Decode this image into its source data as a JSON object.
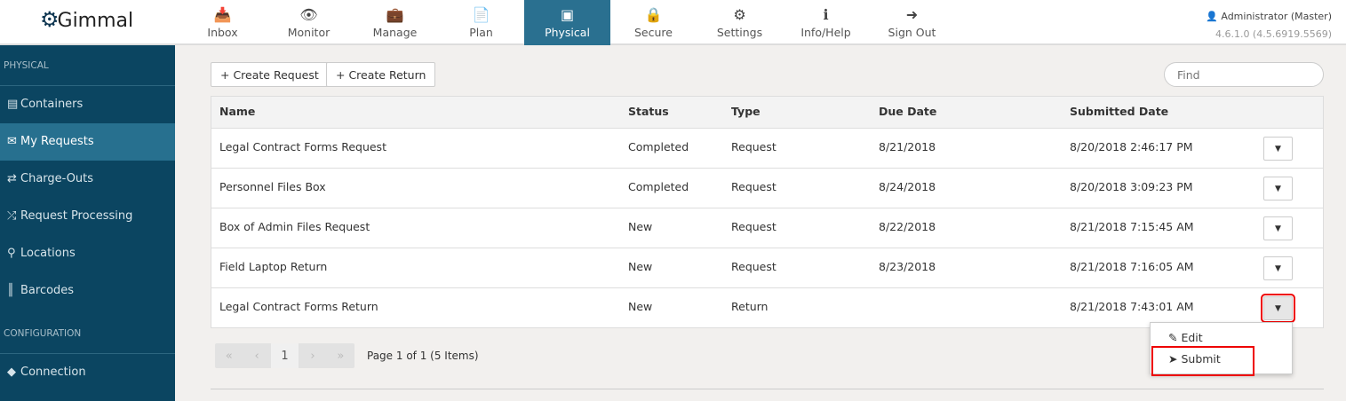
{
  "header": {
    "logo": "Gimmal",
    "user": "Administrator (Master)",
    "version": "4.6.1.0 (4.5.6919.5569)",
    "nav": [
      {
        "label": "Inbox",
        "icon": "inbox-icon",
        "glyph": "📥"
      },
      {
        "label": "Monitor",
        "icon": "eye-icon",
        "glyph": "👁"
      },
      {
        "label": "Manage",
        "icon": "briefcase-icon",
        "glyph": "💼"
      },
      {
        "label": "Plan",
        "icon": "document-icon",
        "glyph": "📄"
      },
      {
        "label": "Physical",
        "icon": "archive-box-icon",
        "glyph": "▣"
      },
      {
        "label": "Secure",
        "icon": "lock-icon",
        "glyph": "🔒"
      },
      {
        "label": "Settings",
        "icon": "gears-icon",
        "glyph": "⚙"
      },
      {
        "label": "Info/Help",
        "icon": "info-icon",
        "glyph": "ℹ"
      },
      {
        "label": "Sign Out",
        "icon": "sign-out-icon",
        "glyph": "➜"
      }
    ],
    "active": "Physical"
  },
  "sidebar": {
    "section1": "PHYSICAL",
    "section2": "CONFIGURATION",
    "items": [
      {
        "label": "Containers",
        "glyph": "▤"
      },
      {
        "label": "My Requests",
        "glyph": "✉"
      },
      {
        "label": "Charge-Outs",
        "glyph": "⇄"
      },
      {
        "label": "Request Processing",
        "glyph": "⤮"
      },
      {
        "label": "Locations",
        "glyph": "⚲"
      },
      {
        "label": "Barcodes",
        "glyph": "║"
      },
      {
        "label": "Connection",
        "glyph": "◆"
      }
    ],
    "active": "My Requests"
  },
  "toolbar": {
    "create_request": "+ Create Request",
    "create_return": "+ Create Return",
    "find_placeholder": "Find"
  },
  "table": {
    "columns": [
      "Name",
      "Status",
      "Type",
      "Due Date",
      "Submitted Date"
    ],
    "rows": [
      [
        "Legal Contract Forms Request",
        "Completed",
        "Request",
        "8/21/2018",
        "8/20/2018 2:46:17 PM"
      ],
      [
        "Personnel Files Box",
        "Completed",
        "Request",
        "8/24/2018",
        "8/20/2018 3:09:23 PM"
      ],
      [
        "Box of Admin Files Request",
        "New",
        "Request",
        "8/22/2018",
        "8/21/2018 7:15:45 AM"
      ],
      [
        "Field Laptop Return",
        "New",
        "Request",
        "8/23/2018",
        "8/21/2018 7:16:05 AM"
      ],
      [
        "Legal Contract Forms Return",
        "New",
        "Return",
        "",
        "8/21/2018 7:43:01 AM"
      ]
    ]
  },
  "pager": {
    "first": "«",
    "prev": "‹",
    "page": "1",
    "next": "›",
    "last": "»",
    "info": "Page 1 of 1 (5 Items)"
  },
  "menu": {
    "edit": "Edit",
    "submit": "Submit"
  },
  "colors": {
    "sidebar": "#0b4561",
    "active": "#27708f",
    "highlight": "#e00000"
  }
}
